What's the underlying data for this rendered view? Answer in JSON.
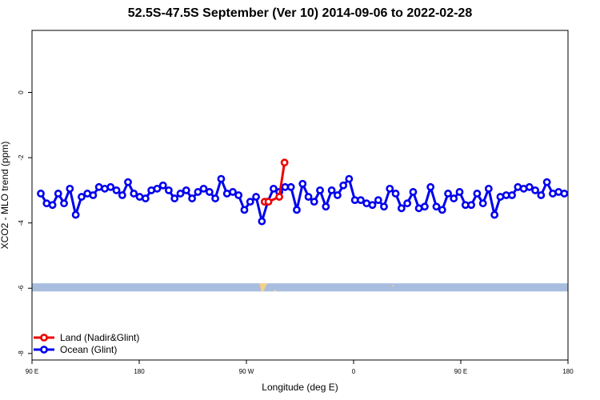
{
  "chart_data": {
    "type": "line",
    "title": "52.5S-47.5S September (Ver 10)   2014-09-06 to 2022-02-28",
    "xlabel": "Longitude (deg E)",
    "ylabel": "XCO2 - MLO trend (ppm)",
    "xlim": [
      90,
      540
    ],
    "ylim": [
      -8.2,
      1.9
    ],
    "x_ticks": [
      90,
      180,
      270,
      360,
      450,
      540
    ],
    "x_tick_labels": [
      "90 E",
      "180",
      "90 W",
      "0",
      "90 E",
      "180"
    ],
    "y_ticks": [
      0,
      -2,
      -4,
      -6,
      -8
    ],
    "y_tick_labels": [
      "0",
      "-2",
      "-4",
      "-6",
      "-8"
    ],
    "grid": false,
    "legend_position": "bottom-left",
    "land_band": {
      "y_from": -5.85,
      "y_to": -6.1
    },
    "series": [
      {
        "name": "Ocean (Glint)",
        "color": "#0000ee",
        "x": [
          97.4,
          102.3,
          107.2,
          112.0,
          116.9,
          121.8,
          126.7,
          131.6,
          136.5,
          141.3,
          146.2,
          151.1,
          156.0,
          160.9,
          165.8,
          170.6,
          175.5,
          180.4,
          185.3,
          190.2,
          195.1,
          200.0,
          204.8,
          209.7,
          214.6,
          219.5,
          224.4,
          229.3,
          234.1,
          239.0,
          243.9,
          248.8,
          253.7,
          258.6,
          263.4,
          268.3,
          273.2,
          278.1,
          283.0,
          287.9,
          292.8,
          297.6,
          302.5,
          307.4,
          312.3,
          317.2,
          322.1,
          326.9,
          331.8,
          336.7,
          341.6,
          346.5,
          351.4,
          356.2,
          361.1,
          366.0,
          370.9,
          375.8,
          380.7,
          385.5,
          390.4,
          395.3,
          400.2,
          405.1,
          410.0,
          414.8,
          419.7,
          424.6,
          429.5,
          434.4,
          439.3,
          444.1,
          449.0,
          453.9,
          458.8,
          463.7,
          468.6,
          473.4,
          478.3,
          483.2,
          488.1,
          493.0,
          497.9,
          502.8,
          507.6,
          512.5,
          517.4,
          522.3,
          527.2,
          532.1,
          536.9
        ],
        "y": [
          -3.1,
          -3.4,
          -3.45,
          -3.1,
          -3.4,
          -2.95,
          -3.75,
          -3.2,
          -3.1,
          -3.15,
          -2.9,
          -2.95,
          -2.9,
          -3.0,
          -3.15,
          -2.75,
          -3.1,
          -3.2,
          -3.25,
          -3.0,
          -2.95,
          -2.85,
          -3.0,
          -3.25,
          -3.1,
          -3.0,
          -3.25,
          -3.05,
          -2.95,
          -3.05,
          -3.25,
          -2.65,
          -3.1,
          -3.05,
          -3.15,
          -3.6,
          -3.35,
          -3.2,
          -3.95,
          -3.35,
          -2.95,
          -3.05,
          -2.9,
          -2.9,
          -3.6,
          -2.8,
          -3.2,
          -3.35,
          -3.0,
          -3.5,
          -3.0,
          -3.15,
          -2.85,
          -2.65,
          -3.3,
          -3.3,
          -3.4,
          -3.45,
          -3.3,
          -3.5,
          -2.95,
          -3.1,
          -3.55,
          -3.4,
          -3.05,
          -3.55,
          -3.5,
          -2.9,
          -3.5,
          -3.6,
          -3.1,
          -3.25,
          -3.05,
          -3.45,
          -3.45,
          -3.1,
          -3.4,
          -2.95,
          -3.75,
          -3.2,
          -3.15,
          -3.15,
          -2.9,
          -2.95,
          -2.9,
          -3.0,
          -3.15,
          -2.75,
          -3.1,
          -3.05,
          -3.1
        ]
      },
      {
        "name": "Land (Nadir&Glint)",
        "color": "#ee0000",
        "x": [
          285.3,
          288.5,
          297.6,
          302.0
        ],
        "y": [
          -3.35,
          -3.35,
          -3.2,
          -2.15
        ]
      }
    ]
  }
}
